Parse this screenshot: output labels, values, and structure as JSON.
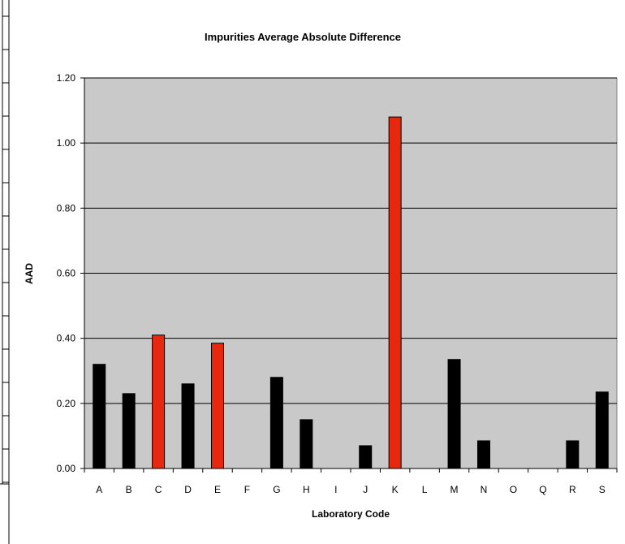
{
  "chart_data": {
    "type": "bar",
    "title": "Impurities Average Absolute Difference",
    "xlabel": "Laboratory Code",
    "ylabel": "AAD",
    "categories": [
      "A",
      "B",
      "C",
      "D",
      "E",
      "F",
      "G",
      "H",
      "I",
      "J",
      "K",
      "L",
      "M",
      "N",
      "O",
      "Q",
      "R",
      "S"
    ],
    "values": [
      0.32,
      0.23,
      0.41,
      0.26,
      0.385,
      0,
      0.28,
      0.15,
      0,
      0.07,
      1.08,
      0,
      0.335,
      0.085,
      0,
      0,
      0.085,
      0.235
    ],
    "highlighted": [
      "C",
      "E",
      "K"
    ],
    "ylim": [
      0,
      1.2
    ],
    "yticks": [
      "0.00",
      "0.20",
      "0.40",
      "0.60",
      "0.80",
      "1.00",
      "1.20"
    ],
    "ytick_values": [
      0,
      0.2,
      0.4,
      0.6,
      0.8,
      1.0,
      1.2
    ],
    "grid": true,
    "colors": {
      "default_bar": "#000000",
      "highlight_bar": "#e8280e",
      "plot_background": "#c9c9c9"
    }
  }
}
